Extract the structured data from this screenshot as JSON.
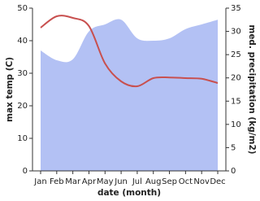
{
  "chart_data": {
    "type": "line",
    "x_label": "date (month)",
    "y_label": "max temp (C)",
    "y2_label": "med. precipitation (kg/m2)",
    "categories": [
      "Jan",
      "Feb",
      "Mar",
      "Apr",
      "May",
      "Jun",
      "Jul",
      "Aug",
      "Sep",
      "Oct",
      "Nov",
      "Dec"
    ],
    "series": [
      {
        "name": "med. precipitation",
        "type": "area",
        "axis": "y2",
        "color": "#b3c1f4",
        "values": [
          25.9,
          23.8,
          24,
          30,
          31.5,
          32.5,
          28.5,
          28,
          28.5,
          30.5,
          31.5,
          32.5
        ]
      },
      {
        "name": "max temp",
        "type": "line",
        "color": "#c8504f",
        "values": [
          44,
          47.5,
          47,
          44.5,
          33,
          27.5,
          26,
          28.5,
          28.7,
          28.5,
          28.3,
          27
        ]
      }
    ],
    "ylim": [
      0,
      50
    ],
    "yticks": [
      0,
      10,
      20,
      30,
      40,
      50
    ],
    "y2lim": [
      0,
      35
    ],
    "y2ticks": [
      0,
      5,
      10,
      15,
      20,
      25,
      30,
      35
    ]
  }
}
